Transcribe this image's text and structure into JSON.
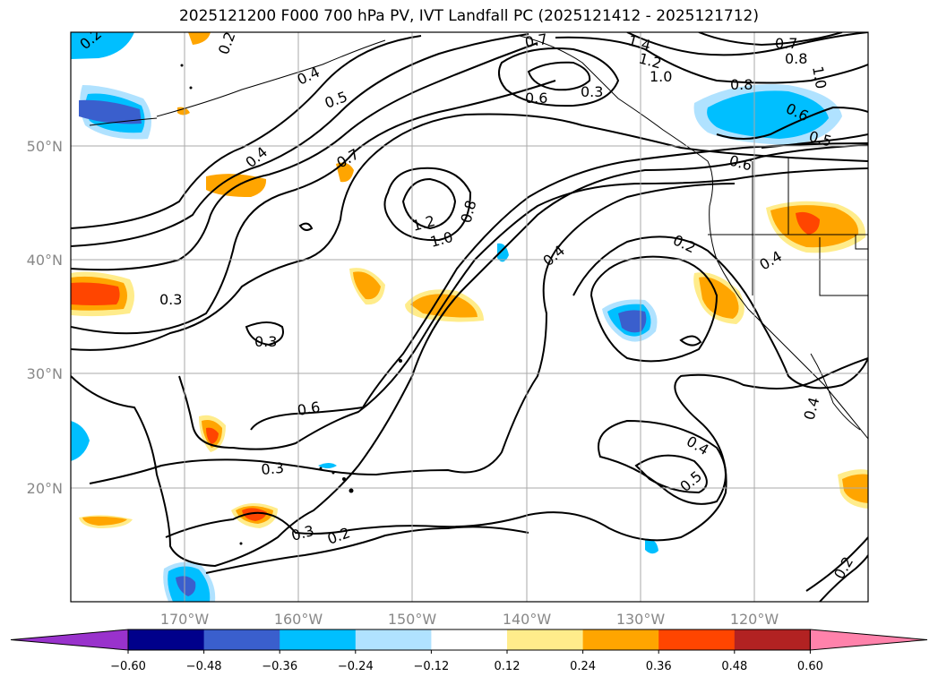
{
  "title": "2025121200 F000 700 hPa PV, IVT Landfall PC (2025121412 - 2025121712)",
  "lon_labels": [
    "170°W",
    "160°W",
    "150°W",
    "140°W",
    "130°W",
    "120°W"
  ],
  "lat_labels": [
    "50°N",
    "40°N",
    "30°N",
    "20°N"
  ],
  "contour_labels": [
    "0.2",
    "0.4",
    "0.5",
    "0.7",
    "1.4",
    "0.7",
    "1.2",
    "1.0",
    "0.8",
    "0.6",
    "0.3",
    "0.8",
    "1.0",
    "0.6",
    "0.5",
    "0.6",
    "0.4",
    "0.7",
    "1.2",
    "1.0",
    "0.8",
    "0.4",
    "0.2",
    "0.4",
    "0.3",
    "0.3",
    "0.6",
    "0.3",
    "0.4",
    "0.5",
    "0.3",
    "0.2",
    "0.2",
    "0.4",
    "0.2"
  ],
  "colorbar": {
    "ticks": [
      "−0.60",
      "−0.48",
      "−0.36",
      "−0.24",
      "−0.12",
      "0.12",
      "0.24",
      "0.36",
      "0.48",
      "0.60"
    ],
    "colors": [
      "#9932cc",
      "#00008b",
      "#3a5fcd",
      "#00bfff",
      "#b0e2ff",
      "#ffffff",
      "#ffec8b",
      "#ffa500",
      "#ff4500",
      "#b22222",
      "#ff82ab"
    ]
  }
}
